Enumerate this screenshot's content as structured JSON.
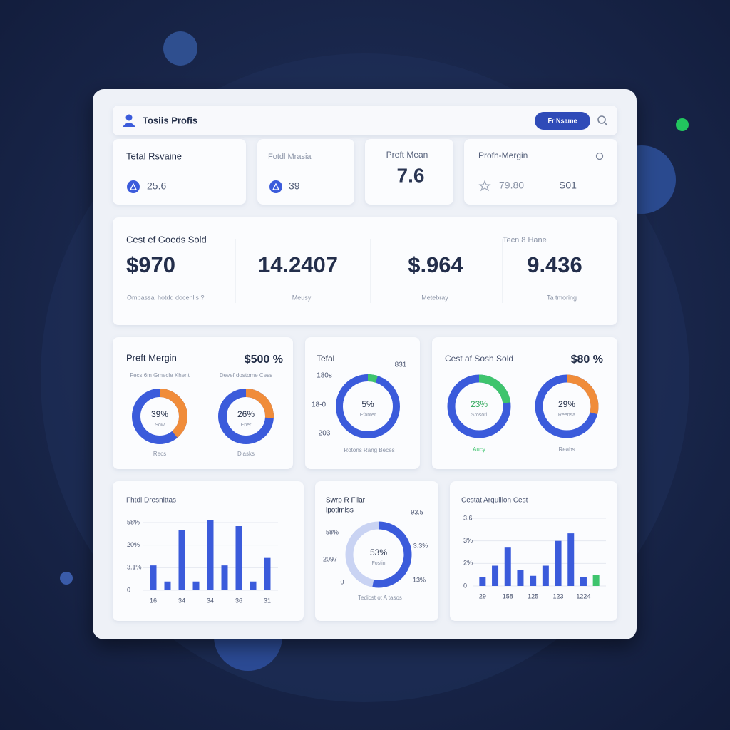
{
  "header": {
    "title": "Tosiis Profis",
    "button": "Fr Nsame"
  },
  "kpis": [
    {
      "label": "Tetal Rsvaine",
      "value": "25.6"
    },
    {
      "label": "Fotdl Mrasia",
      "value": "39"
    },
    {
      "label": "Preft Mean",
      "value": "7.6"
    },
    {
      "label": "Profh-Mergin",
      "value": "79.80",
      "extra": "S01"
    }
  ],
  "summary": {
    "title": "Cest ef Goeds Sold",
    "side_title": "Tecn 8 Hane",
    "metrics": [
      {
        "value": "$970",
        "caption": "Ompassal hotdd docenlis  ?"
      },
      {
        "value": "14.2407",
        "caption": "Meusy"
      },
      {
        "value": "$.964",
        "caption": "Metebray"
      },
      {
        "value": "9.436",
        "caption": "Ta tmoring"
      }
    ]
  },
  "donut_cards": [
    {
      "title": "Preft Mergin",
      "total": "$500 %",
      "donuts": [
        {
          "caption": "Fecs 6m Gmecle Khent",
          "value": 39,
          "label": "39%",
          "sub": "Sow",
          "foot": "Recs",
          "color": "#f08c3a"
        },
        {
          "caption": "Devef dostome Cess",
          "value": 26,
          "label": "26%",
          "sub": "Ener",
          "foot": "Dlasks",
          "color": "#f08c3a"
        }
      ]
    },
    {
      "title": "Tefal",
      "donuts": [
        {
          "value": 5,
          "label": "5%",
          "sub": "Efanter",
          "foot": "Rotons Rang Beces",
          "color": "#3ec46d",
          "callouts": [
            "831",
            "180s",
            "18-0",
            "203"
          ]
        }
      ]
    },
    {
      "title": "Cest af Sosh Sold",
      "total": "$80 %",
      "donuts": [
        {
          "value": 23,
          "label": "23%",
          "sub": "Srosorl",
          "foot": "Aucy",
          "color": "#3ec46d"
        },
        {
          "value": 29,
          "label": "29%",
          "sub": "Reensa",
          "foot": "Reabs",
          "color": "#f08c3a"
        }
      ]
    },
    {
      "title": "Swrp R Filar",
      "subtitle": "lpotimiss",
      "donuts": [
        {
          "value": 53,
          "label": "53%",
          "sub": "Fostin",
          "foot": "Tedicst ot A tasos",
          "color": "#3b5bdb",
          "callouts": [
            "93.5",
            "58%",
            "3.3%",
            "2097",
            "0",
            "13%"
          ]
        }
      ]
    }
  ],
  "charts": [
    {
      "type": "bar",
      "title": "Fhtdi Dresnittas",
      "categories": [
        "16",
        null,
        "34",
        null,
        "34",
        null,
        "36",
        null,
        "31"
      ],
      "values": [
        4.8,
        1.2,
        45,
        1.2,
        62,
        4.8,
        52,
        1.2,
        10.4
      ],
      "colors": [
        "#3b5bdb",
        "#3b5bdb",
        "#3b5bdb",
        "#3b5bdb",
        "#3b5bdb",
        "#3b5bdb",
        "#3b5bdb",
        "#3b5bdb",
        "#3b5bdb"
      ],
      "ylim": [
        0,
        62
      ],
      "yticks": [
        0,
        {
          "value": 3.1,
          "label": "3.1%"
        },
        {
          "value": 20,
          "label": "20%"
        },
        {
          "value": 58,
          "label": "58%"
        }
      ],
      "grid": true
    },
    {
      "type": "bar",
      "title": "Cestat Arquliion Cest",
      "categories": [
        "29",
        null,
        "158",
        null,
        "125",
        null,
        "123",
        null,
        "1224",
        null
      ],
      "values": [
        0.8,
        1.8,
        2.7,
        1.4,
        0.9,
        1.8,
        3.0,
        3.2,
        0.8,
        1.0
      ],
      "colors": [
        "#3b5bdb",
        "#3b5bdb",
        "#3b5bdb",
        "#3b5bdb",
        "#3b5bdb",
        "#3b5bdb",
        "#3b5bdb",
        "#3b5bdb",
        "#3b5bdb",
        "#3ec46d"
      ],
      "ylim": [
        0,
        3.6
      ],
      "yticks": [
        0,
        {
          "value": 2,
          "label": "2%"
        },
        {
          "value": 3,
          "label": "3%"
        },
        3.6
      ],
      "grid": true
    }
  ]
}
